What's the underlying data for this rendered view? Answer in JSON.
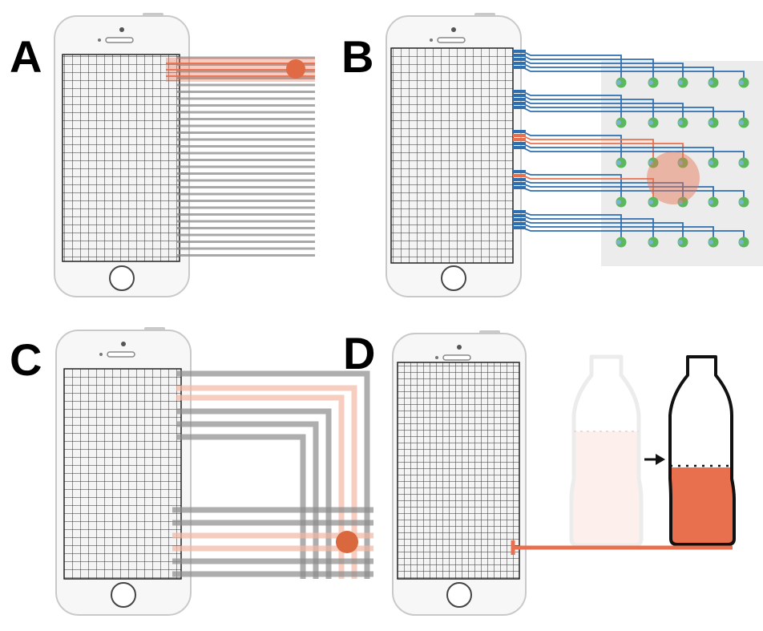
{
  "panels": [
    {
      "id": "A",
      "label": "A"
    },
    {
      "id": "B",
      "label": "B"
    },
    {
      "id": "C",
      "label": "C"
    },
    {
      "id": "D",
      "label": "D"
    }
  ],
  "colors": {
    "grid_line": "#222222",
    "phone_body": "#f7f7f7",
    "phone_outline": "#c9c9c9",
    "gray_line": "#8c8c8c",
    "highlight": "#e8704f",
    "highlight_light": "#f2b8a4",
    "blue_wire": "#2f6fb0",
    "green_dot": "#5cb85c",
    "pad_background": "#ececec",
    "bottle_light": "#fbe8e4",
    "bottle_fill": "#e8704f"
  },
  "icons": [
    "smartphone",
    "bottle",
    "arrow-right"
  ]
}
